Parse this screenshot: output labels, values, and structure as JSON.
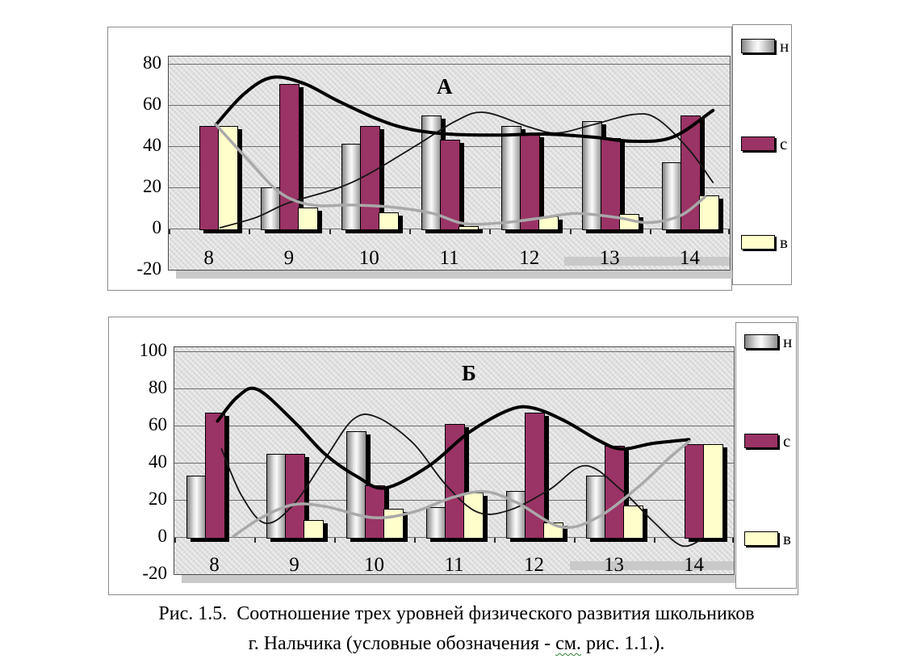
{
  "figure": {
    "caption": {
      "line1": "Рис. 1.5.  Соотношение трех уровней физического развития школьников",
      "line2_pre": "г. Нальчика (условные обозначения - ",
      "line2_wavy": "см.",
      "line2_post": " рис. 1.1.)."
    }
  },
  "colors": {
    "bar_s": "#9a3366",
    "bar_v": "#ffffcc",
    "bar_n_dark": "#858585",
    "bar_n_light": "#fbfbfb",
    "trend_n": "#161616",
    "trend_s": "#000000",
    "trend_v": "#a9a9a9",
    "plot_bg": "#dedede",
    "shadow": "#000000",
    "squiggle": "#2e7d32"
  },
  "chart_data": [
    {
      "type": "bar",
      "panel_label": "А",
      "categories": [
        "8",
        "9",
        "10",
        "11",
        "12",
        "13",
        "14"
      ],
      "series": [
        {
          "name": "н",
          "values": [
            0,
            20,
            41,
            55,
            50,
            52,
            32
          ]
        },
        {
          "name": "с",
          "values": [
            50,
            70,
            50,
            43,
            46,
            44,
            55
          ]
        },
        {
          "name": "в",
          "values": [
            50,
            10,
            8,
            1,
            6,
            7,
            16
          ]
        }
      ],
      "trendlines": [
        {
          "name": "н",
          "style": "thin-black",
          "points": [
            [
              8.15,
              0
            ],
            [
              8.6,
              5
            ],
            [
              9,
              12
            ],
            [
              9.6,
              19
            ],
            [
              10,
              26
            ],
            [
              10.6,
              40
            ],
            [
              11.1,
              52
            ],
            [
              11.45,
              56
            ],
            [
              12,
              49
            ],
            [
              12.35,
              46
            ],
            [
              12.8,
              50
            ],
            [
              13.3,
              55
            ],
            [
              13.6,
              53
            ],
            [
              14,
              38
            ],
            [
              14.3,
              22
            ]
          ]
        },
        {
          "name": "с",
          "style": "thick-black",
          "points": [
            [
              8.1,
              50
            ],
            [
              8.45,
              65
            ],
            [
              8.8,
              73
            ],
            [
              9.2,
              70
            ],
            [
              9.6,
              62
            ],
            [
              10.1,
              53
            ],
            [
              10.5,
              48
            ],
            [
              11,
              45.5
            ],
            [
              11.6,
              45
            ],
            [
              12.2,
              45.5
            ],
            [
              12.8,
              44
            ],
            [
              13.3,
              42
            ],
            [
              13.8,
              44
            ],
            [
              14.3,
              57
            ]
          ]
        },
        {
          "name": "в",
          "style": "thick-gray",
          "points": [
            [
              8.1,
              50
            ],
            [
              8.5,
              33
            ],
            [
              8.9,
              17
            ],
            [
              9.3,
              11
            ],
            [
              9.8,
              11
            ],
            [
              10.3,
              10
            ],
            [
              10.8,
              7
            ],
            [
              11.2,
              2
            ],
            [
              11.7,
              2.5
            ],
            [
              12.2,
              5
            ],
            [
              12.6,
              7
            ],
            [
              13.1,
              5
            ],
            [
              13.5,
              2.5
            ],
            [
              13.9,
              6
            ],
            [
              14.2,
              15
            ]
          ]
        }
      ],
      "yticks": [
        80,
        60,
        40,
        20,
        0,
        -20
      ],
      "ylim": [
        -20,
        83.5
      ],
      "xlabel": "",
      "ylabel": "",
      "grid": true,
      "legend": [
        "н",
        "с",
        "в"
      ],
      "legend_position": "right"
    },
    {
      "type": "bar",
      "panel_label": "Б",
      "categories": [
        "8",
        "9",
        "10",
        "11",
        "12",
        "13",
        "14"
      ],
      "series": [
        {
          "name": "н",
          "values": [
            33,
            45,
            57,
            16,
            25,
            33,
            0
          ]
        },
        {
          "name": "с",
          "values": [
            67,
            45,
            28,
            61,
            67,
            49,
            50
          ]
        },
        {
          "name": "в",
          "values": [
            0,
            9,
            15,
            24,
            8,
            17,
            50
          ]
        }
      ],
      "trendlines": [
        {
          "name": "н",
          "style": "thin-black",
          "points": [
            [
              8.1,
              47
            ],
            [
              8.35,
              22
            ],
            [
              8.65,
              7
            ],
            [
              9,
              17
            ],
            [
              9.4,
              42
            ],
            [
              9.75,
              63
            ],
            [
              10.05,
              64
            ],
            [
              10.5,
              50
            ],
            [
              10.9,
              28
            ],
            [
              11.3,
              13
            ],
            [
              11.7,
              14
            ],
            [
              12.2,
              25
            ],
            [
              12.65,
              38
            ],
            [
              13.1,
              25
            ],
            [
              13.5,
              8
            ],
            [
              13.85,
              -5
            ],
            [
              14.1,
              -2
            ]
          ]
        },
        {
          "name": "с",
          "style": "thick-black",
          "points": [
            [
              8.05,
              62
            ],
            [
              8.3,
              75
            ],
            [
              8.55,
              79
            ],
            [
              9,
              62
            ],
            [
              9.4,
              44
            ],
            [
              9.8,
              32
            ],
            [
              10.15,
              26
            ],
            [
              10.7,
              38
            ],
            [
              11.2,
              56
            ],
            [
              11.7,
              68
            ],
            [
              12,
              69
            ],
            [
              12.4,
              62
            ],
            [
              12.8,
              52
            ],
            [
              13.1,
              47
            ],
            [
              13.5,
              50
            ],
            [
              13.95,
              52
            ]
          ]
        },
        {
          "name": "в",
          "style": "thick-gray",
          "points": [
            [
              8.25,
              0
            ],
            [
              8.6,
              10
            ],
            [
              9,
              17
            ],
            [
              9.4,
              16
            ],
            [
              10,
              10
            ],
            [
              10.5,
              13
            ],
            [
              11,
              21
            ],
            [
              11.4,
              24
            ],
            [
              11.8,
              18
            ],
            [
              12.35,
              5
            ],
            [
              12.8,
              10
            ],
            [
              13.3,
              26
            ],
            [
              13.7,
              42
            ],
            [
              13.95,
              51
            ]
          ]
        }
      ],
      "yticks": [
        100,
        80,
        60,
        40,
        20,
        0,
        -20
      ],
      "ylim": [
        -20,
        102
      ],
      "xlabel": "",
      "ylabel": "",
      "grid": true,
      "legend": [
        "н",
        "с",
        "в"
      ],
      "legend_position": "right"
    }
  ]
}
